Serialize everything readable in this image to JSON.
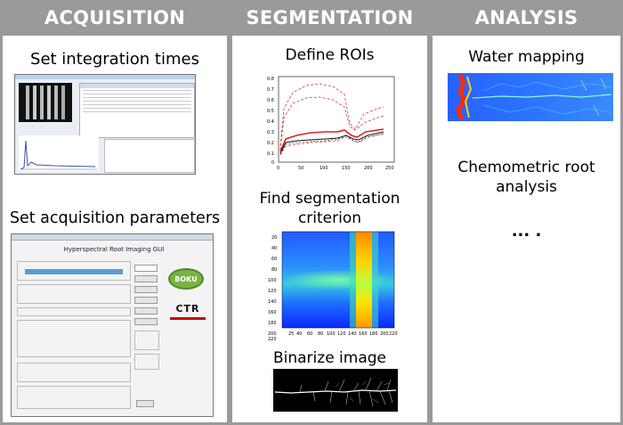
{
  "columns": {
    "acquisition": {
      "header": "ACQUISITION",
      "steps": [
        "Set integration times",
        "Set acquisition parameters"
      ]
    },
    "segmentation": {
      "header": "SEGMENTATION",
      "steps": [
        "Define ROIs",
        "Find segmentation criterion",
        "Binarize image"
      ]
    },
    "analysis": {
      "header": "ANALYSIS",
      "steps": [
        "Water mapping",
        "Chemometric root analysis",
        "... ."
      ]
    }
  },
  "gui": {
    "title": "Hyperspectral Root Imaging GUI",
    "logo1": "BOKU",
    "logo2": "CTR"
  },
  "colors": {
    "background": "#9a9a9a",
    "panel": "#ffffff",
    "header_text": "#ffffff"
  }
}
